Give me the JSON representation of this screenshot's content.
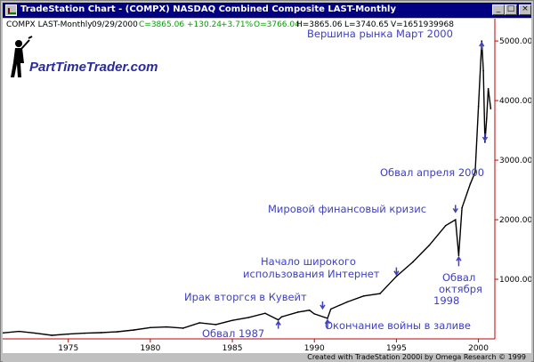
{
  "window": {
    "title": "TradeStation Chart - (COMPX) NASDAQ Combined Composite LAST-Monthly",
    "buttons": {
      "minimize": "_",
      "maximize": "□",
      "close": "×"
    }
  },
  "header": {
    "symbol": "COMPX LAST-Monthly",
    "date": "09/29/2000",
    "close": "C=3865.06",
    "change": "+130.24",
    "change_pct": "+3.71%",
    "open": "O=3766.04",
    "high": "H=3865.06",
    "low": "L=3740.65",
    "volume": "V=1651939968",
    "colors": {
      "up": "#00a000",
      "text": "#000000"
    }
  },
  "logo": {
    "text": "PartTimeTrader.com",
    "icon": "golfer-icon"
  },
  "annotations": {
    "peak": "Вершина рынка Март 2000",
    "april_crash": "Обвал апреля 2000",
    "crisis": "Мировой финансовый кризис",
    "internet_1": "Начало широкого",
    "internet_2": "использования Интернет",
    "oct98_1": "Обвал",
    "oct98_2": "октября",
    "oct98_3": "1998",
    "iraq": "Ирак вторгся в Кувейт",
    "crash87": "Обвал 1987",
    "gulf_war": "Окончание войны в заливе",
    "color": "#4040c0"
  },
  "status_bar": {
    "text": "Created with TradeStation 2000i by Omega Research © 1999"
  },
  "chart_data": {
    "type": "line",
    "title": "",
    "xlabel": "",
    "ylabel": "",
    "x_ticks": [
      "1975",
      "1980",
      "1985",
      "1990",
      "1995",
      "2000"
    ],
    "y_ticks": [
      "1000.00",
      "2000.00",
      "3000.00",
      "4000.00",
      "5000.00"
    ],
    "xlim": [
      1971,
      2001
    ],
    "ylim": [
      0,
      5300
    ],
    "series": [
      {
        "x": [
          1971,
          1972,
          1973,
          1974,
          1975,
          1976,
          1977,
          1978,
          1979,
          1980,
          1981,
          1982,
          1983,
          1984,
          1985,
          1986,
          1987,
          1987.8,
          1988,
          1989,
          1989.7,
          1990,
          1990.8,
          1991,
          1992,
          1993,
          1994,
          1995,
          1996,
          1997,
          1998,
          1998.6,
          1998.8,
          1999,
          1999.5,
          1999.8,
          2000,
          2000.2,
          2000.3,
          2000.4,
          2000.5,
          2000.6,
          2000.75
        ],
        "values": [
          100,
          125,
          95,
          60,
          80,
          95,
          105,
          120,
          150,
          190,
          200,
          180,
          270,
          240,
          310,
          360,
          430,
          320,
          370,
          450,
          480,
          420,
          345,
          500,
          620,
          720,
          760,
          1050,
          1290,
          1570,
          1900,
          2000,
          1400,
          2200,
          2600,
          2800,
          3900,
          5000,
          4500,
          3300,
          3700,
          4200,
          3865
        ]
      }
    ],
    "grid": false,
    "legend": "none"
  }
}
